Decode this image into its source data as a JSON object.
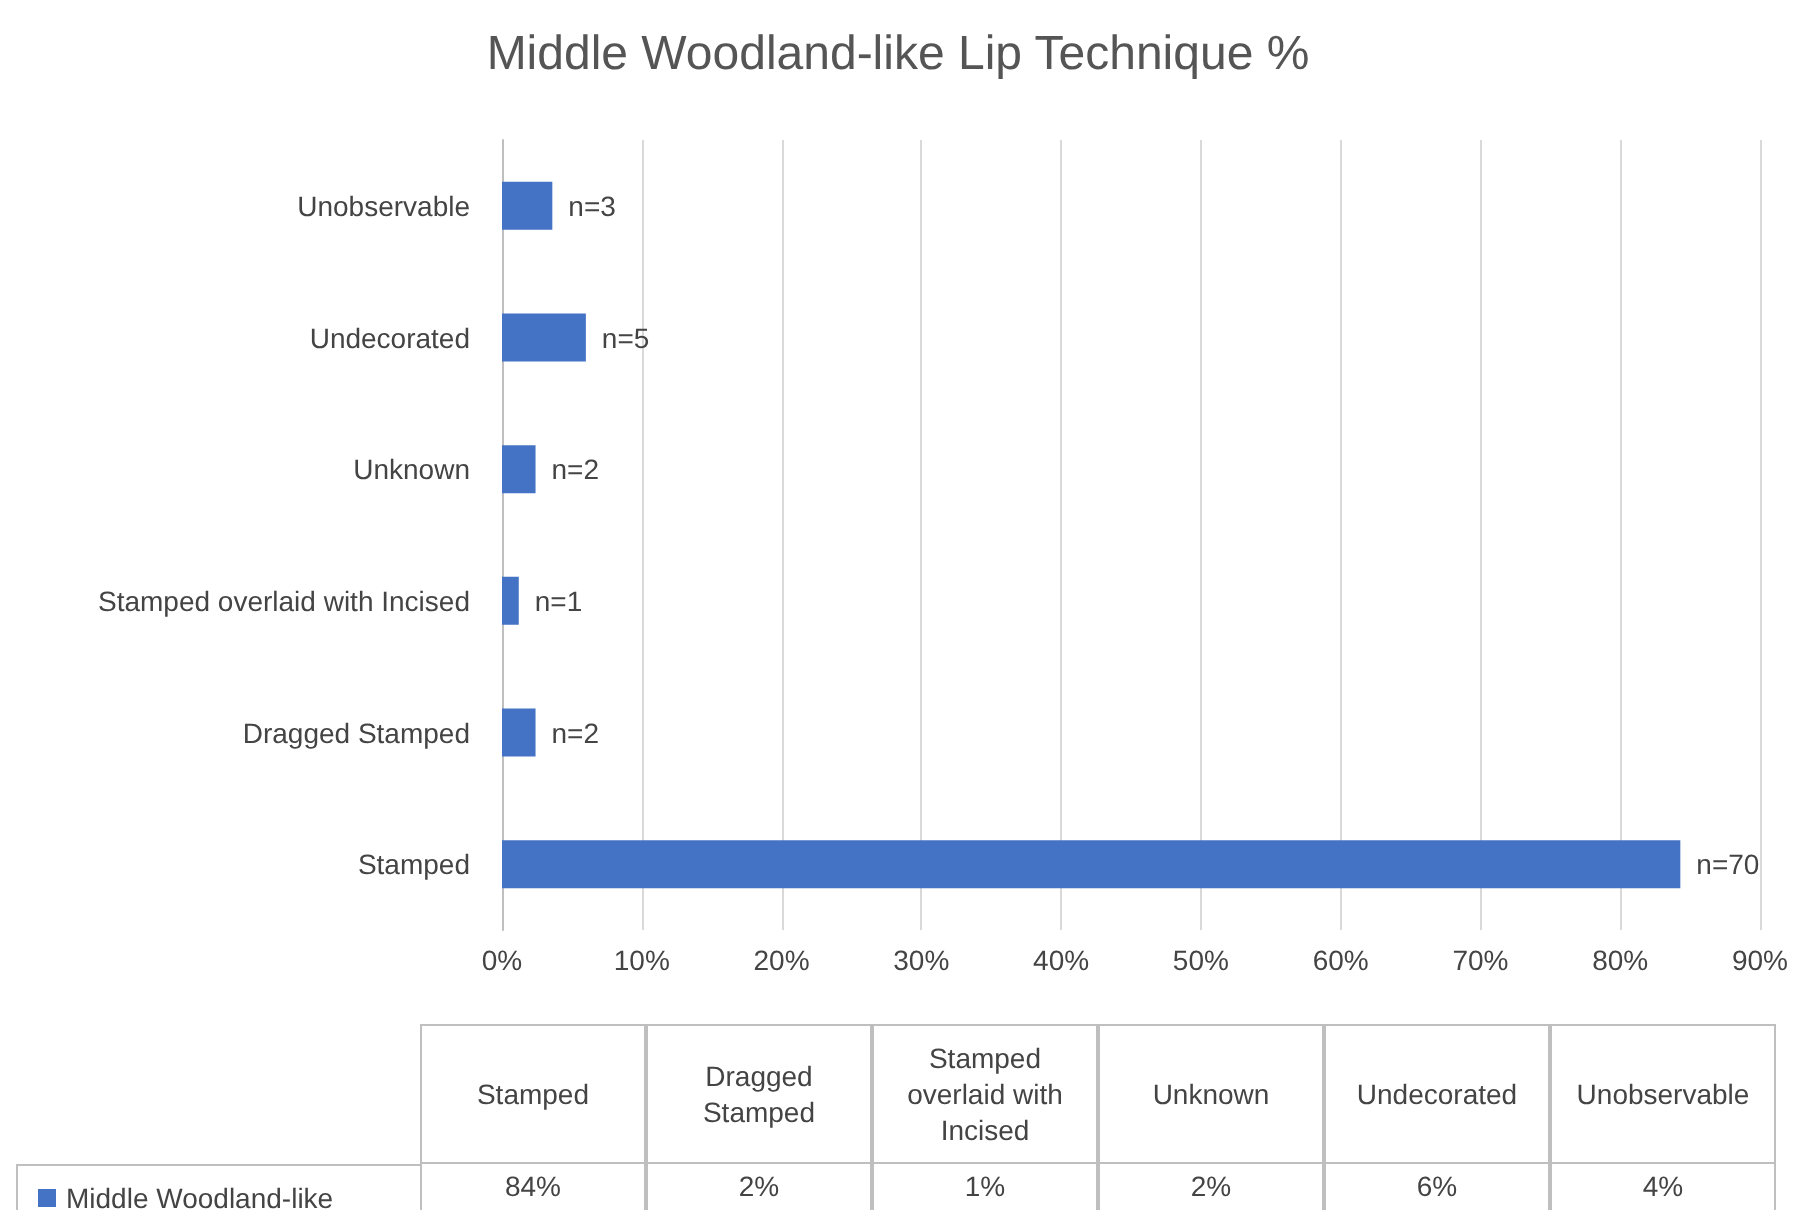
{
  "chart_data": {
    "type": "bar",
    "orientation": "horizontal",
    "title": "Middle Woodland-like Lip Technique %",
    "categories": [
      "Unobservable",
      "Undecorated",
      "Unknown",
      "Stamped overlaid with Incised",
      "Dragged Stamped",
      "Stamped"
    ],
    "series": [
      {
        "name": "Middle Woodland-like",
        "color": "#4472c4",
        "values": [
          3.6,
          6,
          2.4,
          1.2,
          2.4,
          84.3
        ]
      }
    ],
    "xlim": [
      0,
      90
    ],
    "xticks": [
      {
        "value": 0,
        "label": "0%"
      },
      {
        "value": 10,
        "label": "10%"
      },
      {
        "value": 20,
        "label": "20%"
      },
      {
        "value": 30,
        "label": "30%"
      },
      {
        "value": 40,
        "label": "40%"
      },
      {
        "value": 50,
        "label": "50%"
      },
      {
        "value": 60,
        "label": "60%"
      },
      {
        "value": 70,
        "label": "70%"
      },
      {
        "value": 80,
        "label": "80%"
      },
      {
        "value": 90,
        "label": "90%"
      }
    ],
    "grid": "x",
    "legend": "bottom left",
    "annotations": [
      "84%",
      "2%",
      "1%",
      "2%",
      "6%",
      "4%",
      {
        "text": "n=3",
        "x": 3.6,
        "y": "Unobservable"
      },
      {
        "text": "n=5",
        "x": 6,
        "y": "Undecorated"
      },
      {
        "text": "n=2",
        "x": 2.4,
        "y": "Unknown"
      },
      {
        "text": "n=1",
        "x": 1.2,
        "y": "Stamped overlaid with Incised"
      },
      {
        "text": "n=2",
        "x": 2.4,
        "y": "Dragged Stamped"
      },
      {
        "text": "n=70",
        "x": 84.3,
        "y": "Stamped"
      }
    ]
  }
}
